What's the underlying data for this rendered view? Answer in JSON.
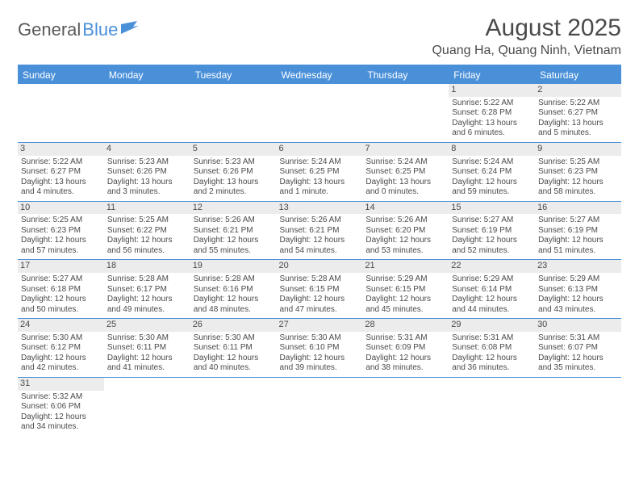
{
  "logo": {
    "part1": "General",
    "part2": "Blue"
  },
  "header": {
    "title": "August 2025",
    "location": "Quang Ha, Quang Ninh, Vietnam"
  },
  "colors": {
    "accent": "#4a90d9",
    "daynum_bg": "#ececec",
    "text": "#4a4a4a",
    "bg": "#ffffff"
  },
  "daynames": [
    "Sunday",
    "Monday",
    "Tuesday",
    "Wednesday",
    "Thursday",
    "Friday",
    "Saturday"
  ],
  "weeks": [
    [
      {
        "n": "",
        "sr": "",
        "ss": "",
        "dl": ""
      },
      {
        "n": "",
        "sr": "",
        "ss": "",
        "dl": ""
      },
      {
        "n": "",
        "sr": "",
        "ss": "",
        "dl": ""
      },
      {
        "n": "",
        "sr": "",
        "ss": "",
        "dl": ""
      },
      {
        "n": "",
        "sr": "",
        "ss": "",
        "dl": ""
      },
      {
        "n": "1",
        "sr": "Sunrise: 5:22 AM",
        "ss": "Sunset: 6:28 PM",
        "dl": "Daylight: 13 hours and 6 minutes."
      },
      {
        "n": "2",
        "sr": "Sunrise: 5:22 AM",
        "ss": "Sunset: 6:27 PM",
        "dl": "Daylight: 13 hours and 5 minutes."
      }
    ],
    [
      {
        "n": "3",
        "sr": "Sunrise: 5:22 AM",
        "ss": "Sunset: 6:27 PM",
        "dl": "Daylight: 13 hours and 4 minutes."
      },
      {
        "n": "4",
        "sr": "Sunrise: 5:23 AM",
        "ss": "Sunset: 6:26 PM",
        "dl": "Daylight: 13 hours and 3 minutes."
      },
      {
        "n": "5",
        "sr": "Sunrise: 5:23 AM",
        "ss": "Sunset: 6:26 PM",
        "dl": "Daylight: 13 hours and 2 minutes."
      },
      {
        "n": "6",
        "sr": "Sunrise: 5:24 AM",
        "ss": "Sunset: 6:25 PM",
        "dl": "Daylight: 13 hours and 1 minute."
      },
      {
        "n": "7",
        "sr": "Sunrise: 5:24 AM",
        "ss": "Sunset: 6:25 PM",
        "dl": "Daylight: 13 hours and 0 minutes."
      },
      {
        "n": "8",
        "sr": "Sunrise: 5:24 AM",
        "ss": "Sunset: 6:24 PM",
        "dl": "Daylight: 12 hours and 59 minutes."
      },
      {
        "n": "9",
        "sr": "Sunrise: 5:25 AM",
        "ss": "Sunset: 6:23 PM",
        "dl": "Daylight: 12 hours and 58 minutes."
      }
    ],
    [
      {
        "n": "10",
        "sr": "Sunrise: 5:25 AM",
        "ss": "Sunset: 6:23 PM",
        "dl": "Daylight: 12 hours and 57 minutes."
      },
      {
        "n": "11",
        "sr": "Sunrise: 5:25 AM",
        "ss": "Sunset: 6:22 PM",
        "dl": "Daylight: 12 hours and 56 minutes."
      },
      {
        "n": "12",
        "sr": "Sunrise: 5:26 AM",
        "ss": "Sunset: 6:21 PM",
        "dl": "Daylight: 12 hours and 55 minutes."
      },
      {
        "n": "13",
        "sr": "Sunrise: 5:26 AM",
        "ss": "Sunset: 6:21 PM",
        "dl": "Daylight: 12 hours and 54 minutes."
      },
      {
        "n": "14",
        "sr": "Sunrise: 5:26 AM",
        "ss": "Sunset: 6:20 PM",
        "dl": "Daylight: 12 hours and 53 minutes."
      },
      {
        "n": "15",
        "sr": "Sunrise: 5:27 AM",
        "ss": "Sunset: 6:19 PM",
        "dl": "Daylight: 12 hours and 52 minutes."
      },
      {
        "n": "16",
        "sr": "Sunrise: 5:27 AM",
        "ss": "Sunset: 6:19 PM",
        "dl": "Daylight: 12 hours and 51 minutes."
      }
    ],
    [
      {
        "n": "17",
        "sr": "Sunrise: 5:27 AM",
        "ss": "Sunset: 6:18 PM",
        "dl": "Daylight: 12 hours and 50 minutes."
      },
      {
        "n": "18",
        "sr": "Sunrise: 5:28 AM",
        "ss": "Sunset: 6:17 PM",
        "dl": "Daylight: 12 hours and 49 minutes."
      },
      {
        "n": "19",
        "sr": "Sunrise: 5:28 AM",
        "ss": "Sunset: 6:16 PM",
        "dl": "Daylight: 12 hours and 48 minutes."
      },
      {
        "n": "20",
        "sr": "Sunrise: 5:28 AM",
        "ss": "Sunset: 6:15 PM",
        "dl": "Daylight: 12 hours and 47 minutes."
      },
      {
        "n": "21",
        "sr": "Sunrise: 5:29 AM",
        "ss": "Sunset: 6:15 PM",
        "dl": "Daylight: 12 hours and 45 minutes."
      },
      {
        "n": "22",
        "sr": "Sunrise: 5:29 AM",
        "ss": "Sunset: 6:14 PM",
        "dl": "Daylight: 12 hours and 44 minutes."
      },
      {
        "n": "23",
        "sr": "Sunrise: 5:29 AM",
        "ss": "Sunset: 6:13 PM",
        "dl": "Daylight: 12 hours and 43 minutes."
      }
    ],
    [
      {
        "n": "24",
        "sr": "Sunrise: 5:30 AM",
        "ss": "Sunset: 6:12 PM",
        "dl": "Daylight: 12 hours and 42 minutes."
      },
      {
        "n": "25",
        "sr": "Sunrise: 5:30 AM",
        "ss": "Sunset: 6:11 PM",
        "dl": "Daylight: 12 hours and 41 minutes."
      },
      {
        "n": "26",
        "sr": "Sunrise: 5:30 AM",
        "ss": "Sunset: 6:11 PM",
        "dl": "Daylight: 12 hours and 40 minutes."
      },
      {
        "n": "27",
        "sr": "Sunrise: 5:30 AM",
        "ss": "Sunset: 6:10 PM",
        "dl": "Daylight: 12 hours and 39 minutes."
      },
      {
        "n": "28",
        "sr": "Sunrise: 5:31 AM",
        "ss": "Sunset: 6:09 PM",
        "dl": "Daylight: 12 hours and 38 minutes."
      },
      {
        "n": "29",
        "sr": "Sunrise: 5:31 AM",
        "ss": "Sunset: 6:08 PM",
        "dl": "Daylight: 12 hours and 36 minutes."
      },
      {
        "n": "30",
        "sr": "Sunrise: 5:31 AM",
        "ss": "Sunset: 6:07 PM",
        "dl": "Daylight: 12 hours and 35 minutes."
      }
    ],
    [
      {
        "n": "31",
        "sr": "Sunrise: 5:32 AM",
        "ss": "Sunset: 6:06 PM",
        "dl": "Daylight: 12 hours and 34 minutes."
      },
      {
        "n": "",
        "sr": "",
        "ss": "",
        "dl": ""
      },
      {
        "n": "",
        "sr": "",
        "ss": "",
        "dl": ""
      },
      {
        "n": "",
        "sr": "",
        "ss": "",
        "dl": ""
      },
      {
        "n": "",
        "sr": "",
        "ss": "",
        "dl": ""
      },
      {
        "n": "",
        "sr": "",
        "ss": "",
        "dl": ""
      },
      {
        "n": "",
        "sr": "",
        "ss": "",
        "dl": ""
      }
    ]
  ]
}
